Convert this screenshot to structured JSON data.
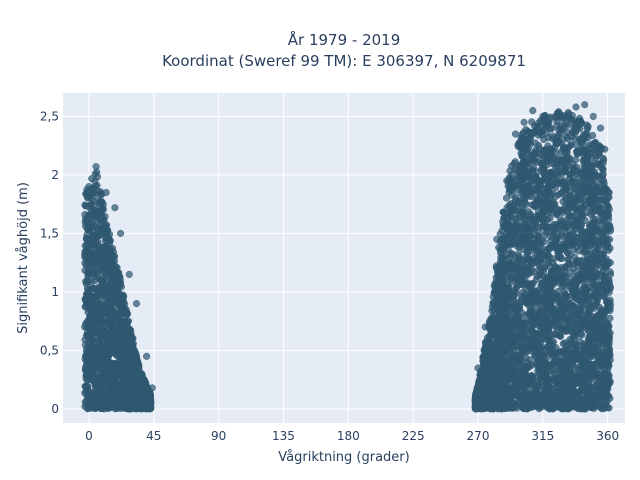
{
  "chart_data": {
    "type": "scatter",
    "title_lines": [
      "År 1979 - 2019",
      "Koordinat (Sweref 99 TM): E 306397, N 6209871"
    ],
    "xlabel": "Vågriktning (grader)",
    "ylabel": "Signifikant våghöjd (m)",
    "xlim": [
      -18,
      372
    ],
    "ylim": [
      -0.12,
      2.7
    ],
    "x_ticks": [
      0,
      45,
      90,
      135,
      180,
      225,
      270,
      315,
      360
    ],
    "x_tick_labels": [
      "0",
      "45",
      "90",
      "135",
      "180",
      "225",
      "270",
      "315",
      "360"
    ],
    "y_ticks": [
      0,
      0.5,
      1,
      1.5,
      2,
      2.5
    ],
    "y_tick_labels": [
      "0",
      "0,5",
      "1",
      "1,5",
      "2",
      "2,5"
    ],
    "grid": true,
    "legend": false,
    "marker_color": "#2f5870",
    "background_color": "#e5ecf6",
    "series": [
      {
        "clusters": [
          {
            "x_range": [
              -3,
              43
            ],
            "envelope": [
              [
                -3,
                1.85
              ],
              [
                5,
                2.05
              ],
              [
                10,
                1.75
              ],
              [
                15,
                1.45
              ],
              [
                22,
                1.1
              ],
              [
                28,
                0.75
              ],
              [
                35,
                0.35
              ],
              [
                43,
                0.12
              ]
            ]
          },
          {
            "x_range": [
              268,
              362
            ],
            "envelope": [
              [
                268,
                0.1
              ],
              [
                272,
                0.35
              ],
              [
                280,
                0.9
              ],
              [
                285,
                1.5
              ],
              [
                292,
                2.05
              ],
              [
                300,
                2.35
              ],
              [
                310,
                2.5
              ],
              [
                320,
                2.52
              ],
              [
                332,
                2.55
              ],
              [
                345,
                2.45
              ],
              [
                355,
                2.3
              ],
              [
                360,
                2.0
              ],
              [
                362,
                1.6
              ]
            ]
          }
        ],
        "points": [
          {
            "x": 5,
            "y": 2.07
          },
          {
            "x": 1,
            "y": 1.82
          },
          {
            "x": 3,
            "y": 1.78
          },
          {
            "x": 12,
            "y": 1.85
          },
          {
            "x": 18,
            "y": 1.72
          },
          {
            "x": 22,
            "y": 1.5
          },
          {
            "x": 28,
            "y": 1.15
          },
          {
            "x": 33,
            "y": 0.9
          },
          {
            "x": 40,
            "y": 0.45
          },
          {
            "x": 44,
            "y": 0.18
          },
          {
            "x": 270,
            "y": 0.35
          },
          {
            "x": 275,
            "y": 0.7
          },
          {
            "x": 283,
            "y": 1.45
          },
          {
            "x": 290,
            "y": 1.95
          },
          {
            "x": 296,
            "y": 2.35
          },
          {
            "x": 302,
            "y": 2.45
          },
          {
            "x": 308,
            "y": 2.55
          },
          {
            "x": 315,
            "y": 2.5
          },
          {
            "x": 320,
            "y": 2.48
          },
          {
            "x": 326,
            "y": 2.54
          },
          {
            "x": 333,
            "y": 2.52
          },
          {
            "x": 338,
            "y": 2.58
          },
          {
            "x": 344,
            "y": 2.6
          },
          {
            "x": 350,
            "y": 2.5
          },
          {
            "x": 355,
            "y": 2.4
          },
          {
            "x": 358,
            "y": 2.22
          },
          {
            "x": 361,
            "y": 1.85
          },
          {
            "x": 360,
            "y": 1.4
          }
        ]
      }
    ]
  }
}
